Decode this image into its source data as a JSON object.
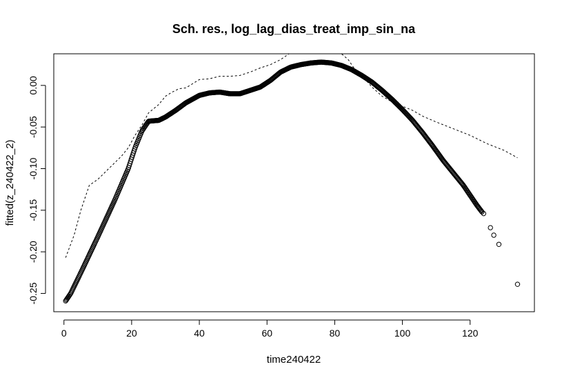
{
  "chart_data": {
    "type": "scatter",
    "title": "Sch. res., log_lag_dias_treat_imp_sin_na",
    "xlabel": "time240422",
    "ylabel": "fitted(z_240422_2)",
    "xlim": [
      -3,
      139
    ],
    "ylim": [
      -0.272,
      0.038
    ],
    "x_ticks": [
      0,
      20,
      40,
      60,
      80,
      100,
      120
    ],
    "x_tick_labels": [
      "0",
      "20",
      "40",
      "60",
      "80",
      "100",
      "120"
    ],
    "y_ticks": [
      -0.25,
      -0.2,
      -0.15,
      -0.1,
      -0.05,
      0.0
    ],
    "y_tick_labels": [
      "-0.25",
      "-0.20",
      "-0.15",
      "-0.10",
      "-0.05",
      "0.00"
    ],
    "grid": false,
    "legend": "none",
    "series": [
      {
        "kind": "points",
        "marker": "open-circle",
        "color": "#000000",
        "curve_x": [
          0.5,
          2,
          5,
          10,
          15,
          19,
          21,
          23,
          25,
          28,
          30,
          33,
          36,
          40,
          43,
          46,
          49,
          52,
          55,
          58,
          61,
          64,
          67,
          70,
          73,
          76,
          79,
          82,
          85,
          88,
          91,
          94,
          97,
          100,
          103,
          106,
          109,
          112,
          115,
          118,
          120,
          122,
          123.5
        ],
        "curve_y": [
          -0.259,
          -0.25,
          -0.225,
          -0.182,
          -0.138,
          -0.1,
          -0.075,
          -0.055,
          -0.043,
          -0.042,
          -0.038,
          -0.03,
          -0.021,
          -0.012,
          -0.009,
          -0.008,
          -0.01,
          -0.01,
          -0.006,
          -0.002,
          0.006,
          0.016,
          0.022,
          0.025,
          0.027,
          0.028,
          0.027,
          0.024,
          0.019,
          0.012,
          0.004,
          -0.006,
          -0.017,
          -0.029,
          -0.042,
          -0.057,
          -0.073,
          -0.09,
          -0.105,
          -0.12,
          -0.132,
          -0.144,
          -0.152
        ],
        "outliers": [
          {
            "x": 124,
            "y": -0.154
          },
          {
            "x": 126,
            "y": -0.171
          },
          {
            "x": 127,
            "y": -0.18
          },
          {
            "x": 128.5,
            "y": -0.191
          },
          {
            "x": 134,
            "y": -0.239
          }
        ]
      },
      {
        "kind": "line",
        "linestyle": "dashed",
        "color": "#000000",
        "x": [
          0.5,
          3,
          5,
          7.5,
          10,
          14,
          17,
          19,
          21,
          23,
          25,
          28,
          30,
          32,
          34,
          36,
          38,
          40,
          43,
          46,
          49,
          52,
          55,
          58,
          61,
          64,
          66.5,
          70,
          73,
          76,
          79,
          82,
          84,
          85.5,
          88,
          91,
          94,
          97,
          100,
          103,
          106,
          110,
          115,
          120,
          125,
          130,
          134
        ],
        "y": [
          -0.207,
          -0.18,
          -0.15,
          -0.12,
          -0.113,
          -0.097,
          -0.085,
          -0.075,
          -0.06,
          -0.048,
          -0.033,
          -0.023,
          -0.013,
          -0.008,
          -0.004,
          -0.003,
          0.002,
          0.007,
          0.008,
          0.011,
          0.011,
          0.012,
          0.016,
          0.021,
          0.025,
          0.031,
          0.038,
          0.04,
          0.04,
          0.04,
          0.04,
          0.039,
          0.031,
          0.022,
          0.012,
          -0.002,
          -0.013,
          -0.02,
          -0.025,
          -0.03,
          -0.037,
          -0.044,
          -0.052,
          -0.06,
          -0.07,
          -0.078,
          -0.087
        ]
      }
    ]
  }
}
